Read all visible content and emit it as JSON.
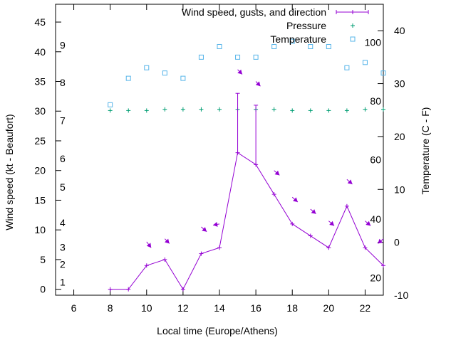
{
  "chart_data": {
    "type": "line",
    "xlabel": "Local time (Europe/Athens)",
    "ylabel": "Wind speed (kt - Beaufort)",
    "y2label": "Temperature (C - F)",
    "xlim": [
      5,
      23
    ],
    "ylim": [
      -1,
      48
    ],
    "y2lim": [
      -10,
      45
    ],
    "x_ticks": [
      6,
      8,
      10,
      12,
      14,
      16,
      18,
      20,
      22
    ],
    "y_ticks": [
      0,
      5,
      10,
      15,
      20,
      25,
      30,
      35,
      40,
      45
    ],
    "y2_ticks": [
      -10,
      0,
      10,
      20,
      30,
      40
    ],
    "beaufort_labels": [
      {
        "label": "1",
        "y": 1.2
      },
      {
        "label": "2",
        "y": 4.2
      },
      {
        "label": "3",
        "y": 7.1
      },
      {
        "label": "4",
        "y": 11.2
      },
      {
        "label": "5",
        "y": 17.2
      },
      {
        "label": "6",
        "y": 22.0
      },
      {
        "label": "7",
        "y": 28.4
      },
      {
        "label": "8",
        "y": 34.8
      },
      {
        "label": "9",
        "y": 41.1
      }
    ],
    "fahrenheit_labels": [
      {
        "label": "20",
        "c": -6.7
      },
      {
        "label": "40",
        "c": 4.4
      },
      {
        "label": "60",
        "c": 15.6
      },
      {
        "label": "80",
        "c": 26.7
      },
      {
        "label": "100",
        "c": 37.8
      }
    ],
    "grid": false,
    "legend_position": "top-right",
    "series": [
      {
        "name": "Wind speed, gusts, and direction",
        "kind": "line",
        "color": "#9400d3",
        "x": [
          8,
          9,
          10,
          11,
          12,
          13,
          14,
          15,
          16,
          17,
          18,
          19,
          20,
          21,
          22,
          23
        ],
        "y": [
          0,
          0,
          4,
          5,
          0,
          6,
          7,
          23,
          21,
          16,
          11,
          9,
          7,
          14,
          7,
          4
        ],
        "gusts": [
          {
            "x": 15,
            "y": 33
          },
          {
            "x": 16,
            "y": 31
          }
        ],
        "direction_arrows": [
          {
            "x": 10,
            "y": 8,
            "dx": 0.25,
            "dy": -1.0
          },
          {
            "x": 11,
            "y": 8.5,
            "dx": 0.25,
            "dy": -0.8
          },
          {
            "x": 13,
            "y": 10.5,
            "dx": 0.3,
            "dy": -0.8
          },
          {
            "x": 14,
            "y": 11,
            "dx": -0.35,
            "dy": -0.2
          },
          {
            "x": 15,
            "y": 37,
            "dx": 0.25,
            "dy": -0.8
          },
          {
            "x": 16,
            "y": 35,
            "dx": 0.25,
            "dy": -0.8
          },
          {
            "x": 17,
            "y": 20,
            "dx": 0.3,
            "dy": -0.8
          },
          {
            "x": 18,
            "y": 15.5,
            "dx": 0.3,
            "dy": -0.8
          },
          {
            "x": 19,
            "y": 13.5,
            "dx": 0.3,
            "dy": -0.8
          },
          {
            "x": 20,
            "y": 11.5,
            "dx": 0.3,
            "dy": -0.8
          },
          {
            "x": 21,
            "y": 18.5,
            "dx": 0.3,
            "dy": -0.8
          },
          {
            "x": 22,
            "y": 11.5,
            "dx": 0.3,
            "dy": -0.8
          },
          {
            "x": 23,
            "y": 8.5,
            "dx": -0.3,
            "dy": -0.8
          }
        ]
      },
      {
        "name": "Pressure",
        "kind": "points-plus",
        "color": "#009e73",
        "x": [
          8,
          9,
          10,
          11,
          12,
          13,
          14,
          15,
          16,
          17,
          18,
          19,
          20,
          21,
          22,
          23
        ],
        "y": [
          30.1,
          30.1,
          30.1,
          30.3,
          30.3,
          30.3,
          30.3,
          30.3,
          30.3,
          30.3,
          30.1,
          30.1,
          30.1,
          30.1,
          30.3,
          30.3
        ]
      },
      {
        "name": "Temperature",
        "kind": "points-square",
        "axis": "y2",
        "color": "#56b4e9",
        "x": [
          8,
          9,
          10,
          11,
          12,
          13,
          14,
          15,
          16,
          17,
          18,
          19,
          20,
          21,
          22,
          23
        ],
        "y": [
          26,
          31,
          33,
          32,
          31,
          35,
          37,
          35,
          35,
          37,
          38,
          37,
          37,
          33,
          34,
          32
        ]
      }
    ]
  }
}
